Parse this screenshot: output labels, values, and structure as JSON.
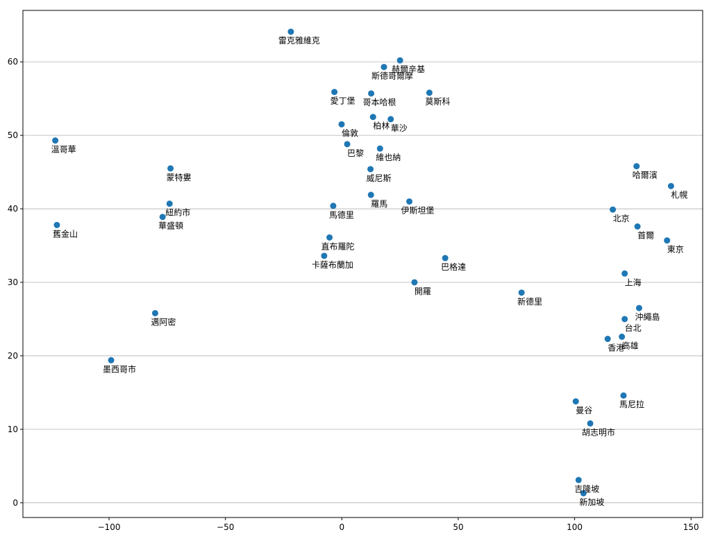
{
  "chart_data": {
    "type": "scatter",
    "title": "",
    "xlabel": "",
    "ylabel": "",
    "xlim": [
      -137,
      155
    ],
    "ylim": [
      -2,
      67
    ],
    "grid": "horizontal",
    "legend": "none",
    "point_color": "#1f77b4",
    "xticks": [
      -100,
      -50,
      0,
      50,
      100,
      150
    ],
    "yticks": [
      0,
      10,
      20,
      30,
      40,
      50,
      60
    ],
    "points": [
      {
        "label": "雷克雅維克",
        "x": -21.9,
        "y": 64.1
      },
      {
        "label": "赫爾辛基",
        "x": 25.0,
        "y": 60.2
      },
      {
        "label": "斯德哥爾摩",
        "x": 18.1,
        "y": 59.3
      },
      {
        "label": "愛丁堡",
        "x": -3.2,
        "y": 55.9
      },
      {
        "label": "哥本哈根",
        "x": 12.6,
        "y": 55.7
      },
      {
        "label": "莫斯科",
        "x": 37.6,
        "y": 55.8
      },
      {
        "label": "柏林",
        "x": 13.4,
        "y": 52.5
      },
      {
        "label": "華沙",
        "x": 21.0,
        "y": 52.2
      },
      {
        "label": "倫敦",
        "x": -0.1,
        "y": 51.5
      },
      {
        "label": "巴黎",
        "x": 2.3,
        "y": 48.8
      },
      {
        "label": "維也納",
        "x": 16.4,
        "y": 48.2
      },
      {
        "label": "溫哥華",
        "x": -123.1,
        "y": 49.3
      },
      {
        "label": "蒙特婁",
        "x": -73.6,
        "y": 45.5
      },
      {
        "label": "威尼斯",
        "x": 12.3,
        "y": 45.4
      },
      {
        "label": "羅馬",
        "x": 12.5,
        "y": 41.9
      },
      {
        "label": "伊斯坦堡",
        "x": 29.0,
        "y": 41.0
      },
      {
        "label": "紐約市",
        "x": -74.0,
        "y": 40.7
      },
      {
        "label": "華盛頓",
        "x": -77.0,
        "y": 38.9
      },
      {
        "label": "馬德里",
        "x": -3.7,
        "y": 40.4
      },
      {
        "label": "舊金山",
        "x": -122.4,
        "y": 37.8
      },
      {
        "label": "直布羅陀",
        "x": -5.3,
        "y": 36.1
      },
      {
        "label": "卡薩布蘭加",
        "x": -7.6,
        "y": 33.6
      },
      {
        "label": "巴格達",
        "x": 44.4,
        "y": 33.3
      },
      {
        "label": "開羅",
        "x": 31.2,
        "y": 30.0
      },
      {
        "label": "新德里",
        "x": 77.2,
        "y": 28.6
      },
      {
        "label": "邁阿密",
        "x": -80.2,
        "y": 25.8
      },
      {
        "label": "墨西哥市",
        "x": -99.1,
        "y": 19.4
      },
      {
        "label": "哈爾濱",
        "x": 126.6,
        "y": 45.8
      },
      {
        "label": "札幌",
        "x": 141.4,
        "y": 43.1
      },
      {
        "label": "北京",
        "x": 116.4,
        "y": 39.9
      },
      {
        "label": "首爾",
        "x": 127.0,
        "y": 37.6
      },
      {
        "label": "東京",
        "x": 139.7,
        "y": 35.7
      },
      {
        "label": "上海",
        "x": 121.5,
        "y": 31.2
      },
      {
        "label": "沖繩島",
        "x": 127.7,
        "y": 26.5
      },
      {
        "label": "台北",
        "x": 121.5,
        "y": 25.0
      },
      {
        "label": "高雄",
        "x": 120.3,
        "y": 22.6
      },
      {
        "label": "香港",
        "x": 114.2,
        "y": 22.3
      },
      {
        "label": "馬尼拉",
        "x": 121.0,
        "y": 14.6
      },
      {
        "label": "曼谷",
        "x": 100.5,
        "y": 13.8
      },
      {
        "label": "胡志明市",
        "x": 106.7,
        "y": 10.8
      },
      {
        "label": "吉隆坡",
        "x": 101.7,
        "y": 3.1
      },
      {
        "label": "新加坡",
        "x": 103.8,
        "y": 1.3
      }
    ]
  }
}
